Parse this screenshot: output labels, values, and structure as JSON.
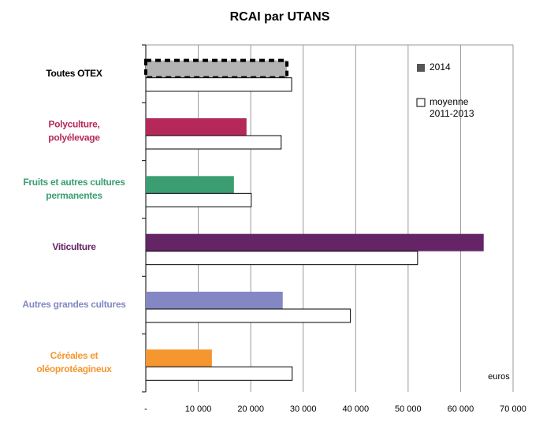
{
  "chart_data": {
    "type": "hbar",
    "title": "RCAI par UTANS",
    "annotation": "euros",
    "categories": [
      [
        "Toutes OTEX"
      ],
      [
        "Polyculture,",
        "polyélevage"
      ],
      [
        "Fruits et autres cultures",
        "permanentes"
      ],
      [
        "Viticulture"
      ],
      [
        "Autres grandes cultures"
      ],
      [
        "Céréales et",
        "oléoprotéagineux"
      ]
    ],
    "category_colors": [
      "#000000",
      "#b5295a",
      "#3a9e72",
      "#642466",
      "#8388c4",
      "#f5962e"
    ],
    "series": [
      {
        "name": [
          "2014"
        ],
        "color": "#555555",
        "values": [
          26900,
          19200,
          16800,
          64400,
          26100,
          12600
        ]
      },
      {
        "name": [
          "moyenne",
          "2011-2013"
        ],
        "color": "#ffffff",
        "values": [
          27800,
          25800,
          20100,
          51800,
          39000,
          27900
        ]
      }
    ],
    "xlim": [
      0,
      70000
    ],
    "xticks": [
      {
        "value": 0,
        "label": "-"
      },
      {
        "value": 10000,
        "label": "10 000"
      },
      {
        "value": 20000,
        "label": "20 000"
      },
      {
        "value": 30000,
        "label": "30 000"
      },
      {
        "value": 40000,
        "label": "40 000"
      },
      {
        "value": 50000,
        "label": "50 000"
      },
      {
        "value": 60000,
        "label": "60 000"
      },
      {
        "value": 70000,
        "label": "70 000"
      }
    ],
    "grid": true,
    "legend": "top-right"
  }
}
